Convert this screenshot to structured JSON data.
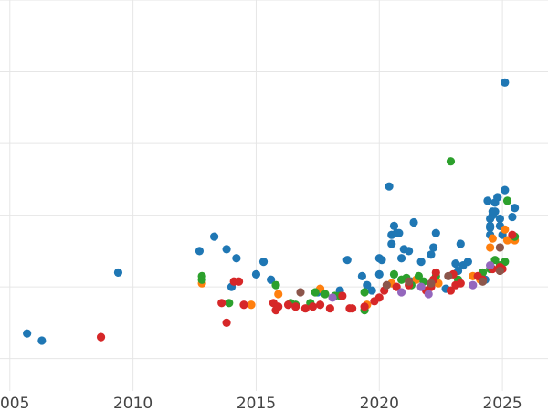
{
  "chart_data": {
    "type": "scatter",
    "title": "",
    "xlabel": "",
    "ylabel": "",
    "xlim": [
      2004.6,
      2026.85
    ],
    "ylim": [
      -4,
      105
    ],
    "grid": true,
    "legend": "none",
    "x_ticks": [
      2005,
      2010,
      2015,
      2020,
      2025
    ],
    "x_tick_labels": [
      "2005",
      "2010",
      "2015",
      "2020",
      "2025"
    ],
    "y_gridlines": [
      5,
      25,
      45,
      65,
      85,
      105
    ],
    "colors": {
      "blue": "#1f77b4",
      "orange": "#ff7f0e",
      "green": "#2ca02c",
      "red": "#d62728",
      "purple": "#9467bd",
      "brown": "#8c564b"
    },
    "series": [
      {
        "color": "blue",
        "points": [
          [
            2005.7,
            12
          ],
          [
            2006.3,
            10
          ],
          [
            2009.4,
            29
          ],
          [
            2012.7,
            35
          ],
          [
            2013.3,
            39
          ],
          [
            2013.8,
            35.5
          ],
          [
            2014.0,
            25
          ],
          [
            2014.2,
            33
          ],
          [
            2015.0,
            28.5
          ],
          [
            2015.3,
            32
          ],
          [
            2015.6,
            27
          ],
          [
            2017.5,
            23.5
          ],
          [
            2018.4,
            24
          ],
          [
            2018.7,
            32.5
          ],
          [
            2019.3,
            28
          ],
          [
            2019.5,
            25.5
          ],
          [
            2019.7,
            24
          ],
          [
            2020.0,
            33
          ],
          [
            2020.0,
            28.5
          ],
          [
            2020.1,
            32.5
          ],
          [
            2020.4,
            53
          ],
          [
            2020.5,
            37
          ],
          [
            2020.5,
            39.5
          ],
          [
            2020.6,
            42
          ],
          [
            2020.7,
            40
          ],
          [
            2020.8,
            40
          ],
          [
            2020.9,
            33
          ],
          [
            2021.0,
            35.5
          ],
          [
            2021.2,
            35
          ],
          [
            2021.3,
            26.5
          ],
          [
            2021.4,
            43
          ],
          [
            2021.7,
            32
          ],
          [
            2022.1,
            34
          ],
          [
            2022.2,
            36
          ],
          [
            2022.3,
            40
          ],
          [
            2022.7,
            24.5
          ],
          [
            2023.1,
            31.5
          ],
          [
            2023.2,
            29.5
          ],
          [
            2023.3,
            37
          ],
          [
            2023.4,
            31
          ],
          [
            2023.6,
            32
          ],
          [
            2024.3,
            27
          ],
          [
            2024.4,
            49
          ],
          [
            2024.5,
            39.5
          ],
          [
            2024.5,
            41.5
          ],
          [
            2024.5,
            42
          ],
          [
            2024.5,
            44
          ],
          [
            2024.6,
            45
          ],
          [
            2024.6,
            46
          ],
          [
            2024.7,
            46
          ],
          [
            2024.7,
            48.5
          ],
          [
            2024.8,
            50
          ],
          [
            2024.8,
            50
          ],
          [
            2024.9,
            42
          ],
          [
            2024.9,
            44
          ],
          [
            2025.0,
            39.5
          ],
          [
            2025.1,
            52
          ],
          [
            2025.1,
            82
          ],
          [
            2025.4,
            44.5
          ],
          [
            2025.5,
            47
          ]
        ]
      },
      {
        "color": "orange",
        "points": [
          [
            2012.8,
            26
          ],
          [
            2014.8,
            20
          ],
          [
            2015.9,
            23
          ],
          [
            2017.6,
            24.5
          ],
          [
            2019.5,
            20
          ],
          [
            2020.5,
            26
          ],
          [
            2021.5,
            27
          ],
          [
            2022.4,
            26
          ],
          [
            2023.8,
            28
          ],
          [
            2024.1,
            27
          ],
          [
            2024.5,
            36
          ],
          [
            2024.6,
            38.5
          ],
          [
            2025.1,
            41
          ],
          [
            2025.2,
            38
          ],
          [
            2025.5,
            38
          ]
        ]
      },
      {
        "color": "green",
        "points": [
          [
            2012.8,
            27
          ],
          [
            2012.8,
            28
          ],
          [
            2013.9,
            20.5
          ],
          [
            2015.8,
            25.5
          ],
          [
            2016.4,
            20.5
          ],
          [
            2016.6,
            20
          ],
          [
            2017.2,
            20.5
          ],
          [
            2017.4,
            23.5
          ],
          [
            2017.8,
            23
          ],
          [
            2018.2,
            22.5
          ],
          [
            2018.4,
            22.5
          ],
          [
            2019.4,
            18.5
          ],
          [
            2019.4,
            23.5
          ],
          [
            2020.6,
            28.5
          ],
          [
            2020.9,
            27
          ],
          [
            2021.1,
            27.5
          ],
          [
            2021.3,
            25.5
          ],
          [
            2021.6,
            28
          ],
          [
            2021.8,
            26.5
          ],
          [
            2022.3,
            28
          ],
          [
            2022.9,
            60
          ],
          [
            2023.2,
            27
          ],
          [
            2024.2,
            29
          ],
          [
            2024.5,
            30
          ],
          [
            2024.7,
            32.5
          ],
          [
            2024.9,
            31
          ],
          [
            2025.1,
            32
          ],
          [
            2025.2,
            49
          ],
          [
            2025.5,
            39
          ]
        ]
      },
      {
        "color": "red",
        "points": [
          [
            2008.7,
            11
          ],
          [
            2013.6,
            20.5
          ],
          [
            2013.8,
            15
          ],
          [
            2014.1,
            26.5
          ],
          [
            2014.3,
            26.5
          ],
          [
            2014.5,
            20
          ],
          [
            2015.7,
            20.5
          ],
          [
            2015.8,
            18.5
          ],
          [
            2015.9,
            19.5
          ],
          [
            2016.3,
            20
          ],
          [
            2016.6,
            19.5
          ],
          [
            2017.0,
            19
          ],
          [
            2017.3,
            19.5
          ],
          [
            2017.6,
            20
          ],
          [
            2018.0,
            19
          ],
          [
            2018.5,
            22.5
          ],
          [
            2018.8,
            19
          ],
          [
            2018.9,
            19
          ],
          [
            2019.4,
            19.5
          ],
          [
            2019.8,
            21
          ],
          [
            2020.0,
            22
          ],
          [
            2020.2,
            24
          ],
          [
            2020.7,
            25
          ],
          [
            2021.2,
            25.5
          ],
          [
            2021.9,
            24
          ],
          [
            2022.1,
            25
          ],
          [
            2022.2,
            27
          ],
          [
            2022.3,
            29
          ],
          [
            2022.9,
            24
          ],
          [
            2023.0,
            28.5
          ],
          [
            2023.1,
            25.5
          ],
          [
            2023.3,
            26
          ],
          [
            2024.0,
            28
          ],
          [
            2024.2,
            27
          ],
          [
            2024.6,
            30
          ],
          [
            2024.9,
            30.5
          ],
          [
            2025.0,
            30
          ],
          [
            2025.4,
            39.5
          ]
        ]
      },
      {
        "color": "purple",
        "points": [
          [
            2018.1,
            22
          ],
          [
            2020.9,
            23.5
          ],
          [
            2021.7,
            25
          ],
          [
            2022.0,
            23
          ],
          [
            2023.8,
            25.5
          ],
          [
            2024.5,
            31
          ]
        ]
      },
      {
        "color": "brown",
        "points": [
          [
            2016.8,
            23.5
          ],
          [
            2020.3,
            25.5
          ],
          [
            2021.2,
            26.5
          ],
          [
            2022.1,
            26
          ],
          [
            2022.8,
            28
          ],
          [
            2024.2,
            26.5
          ],
          [
            2024.9,
            29.5
          ],
          [
            2024.9,
            36
          ]
        ]
      }
    ]
  }
}
